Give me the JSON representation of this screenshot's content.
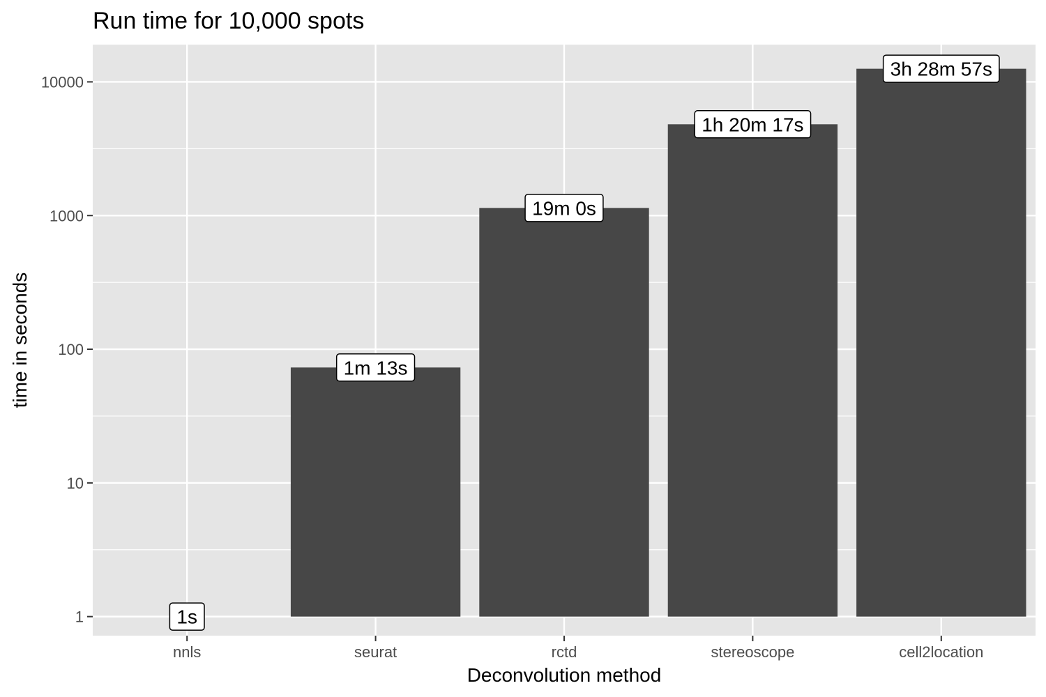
{
  "chart_data": {
    "type": "bar",
    "title": "Run time for 10,000 spots",
    "xlabel": "Deconvolution method",
    "ylabel": "time in seconds",
    "y_scale": "log10",
    "ylim": [
      0.72,
      19000
    ],
    "y_ticks": [
      1,
      10,
      100,
      1000,
      10000
    ],
    "y_tick_labels": [
      "1",
      "10",
      "100",
      "1000",
      "10000"
    ],
    "grid": true,
    "legend": "none",
    "categories": [
      "nnls",
      "seurat",
      "rctd",
      "stereoscope",
      "cell2location"
    ],
    "values": [
      1,
      73,
      1140,
      4817,
      12537
    ],
    "data_labels": [
      "1s",
      "1m 13s",
      "19m 0s",
      "1h 20m 17s",
      "3h 28m 57s"
    ],
    "colors": {
      "bar": "#474747",
      "panel": "#e5e5e5",
      "grid": "#ffffff",
      "tick": "#333333",
      "label_box": "#ffffff",
      "label_border": "#000000"
    }
  }
}
